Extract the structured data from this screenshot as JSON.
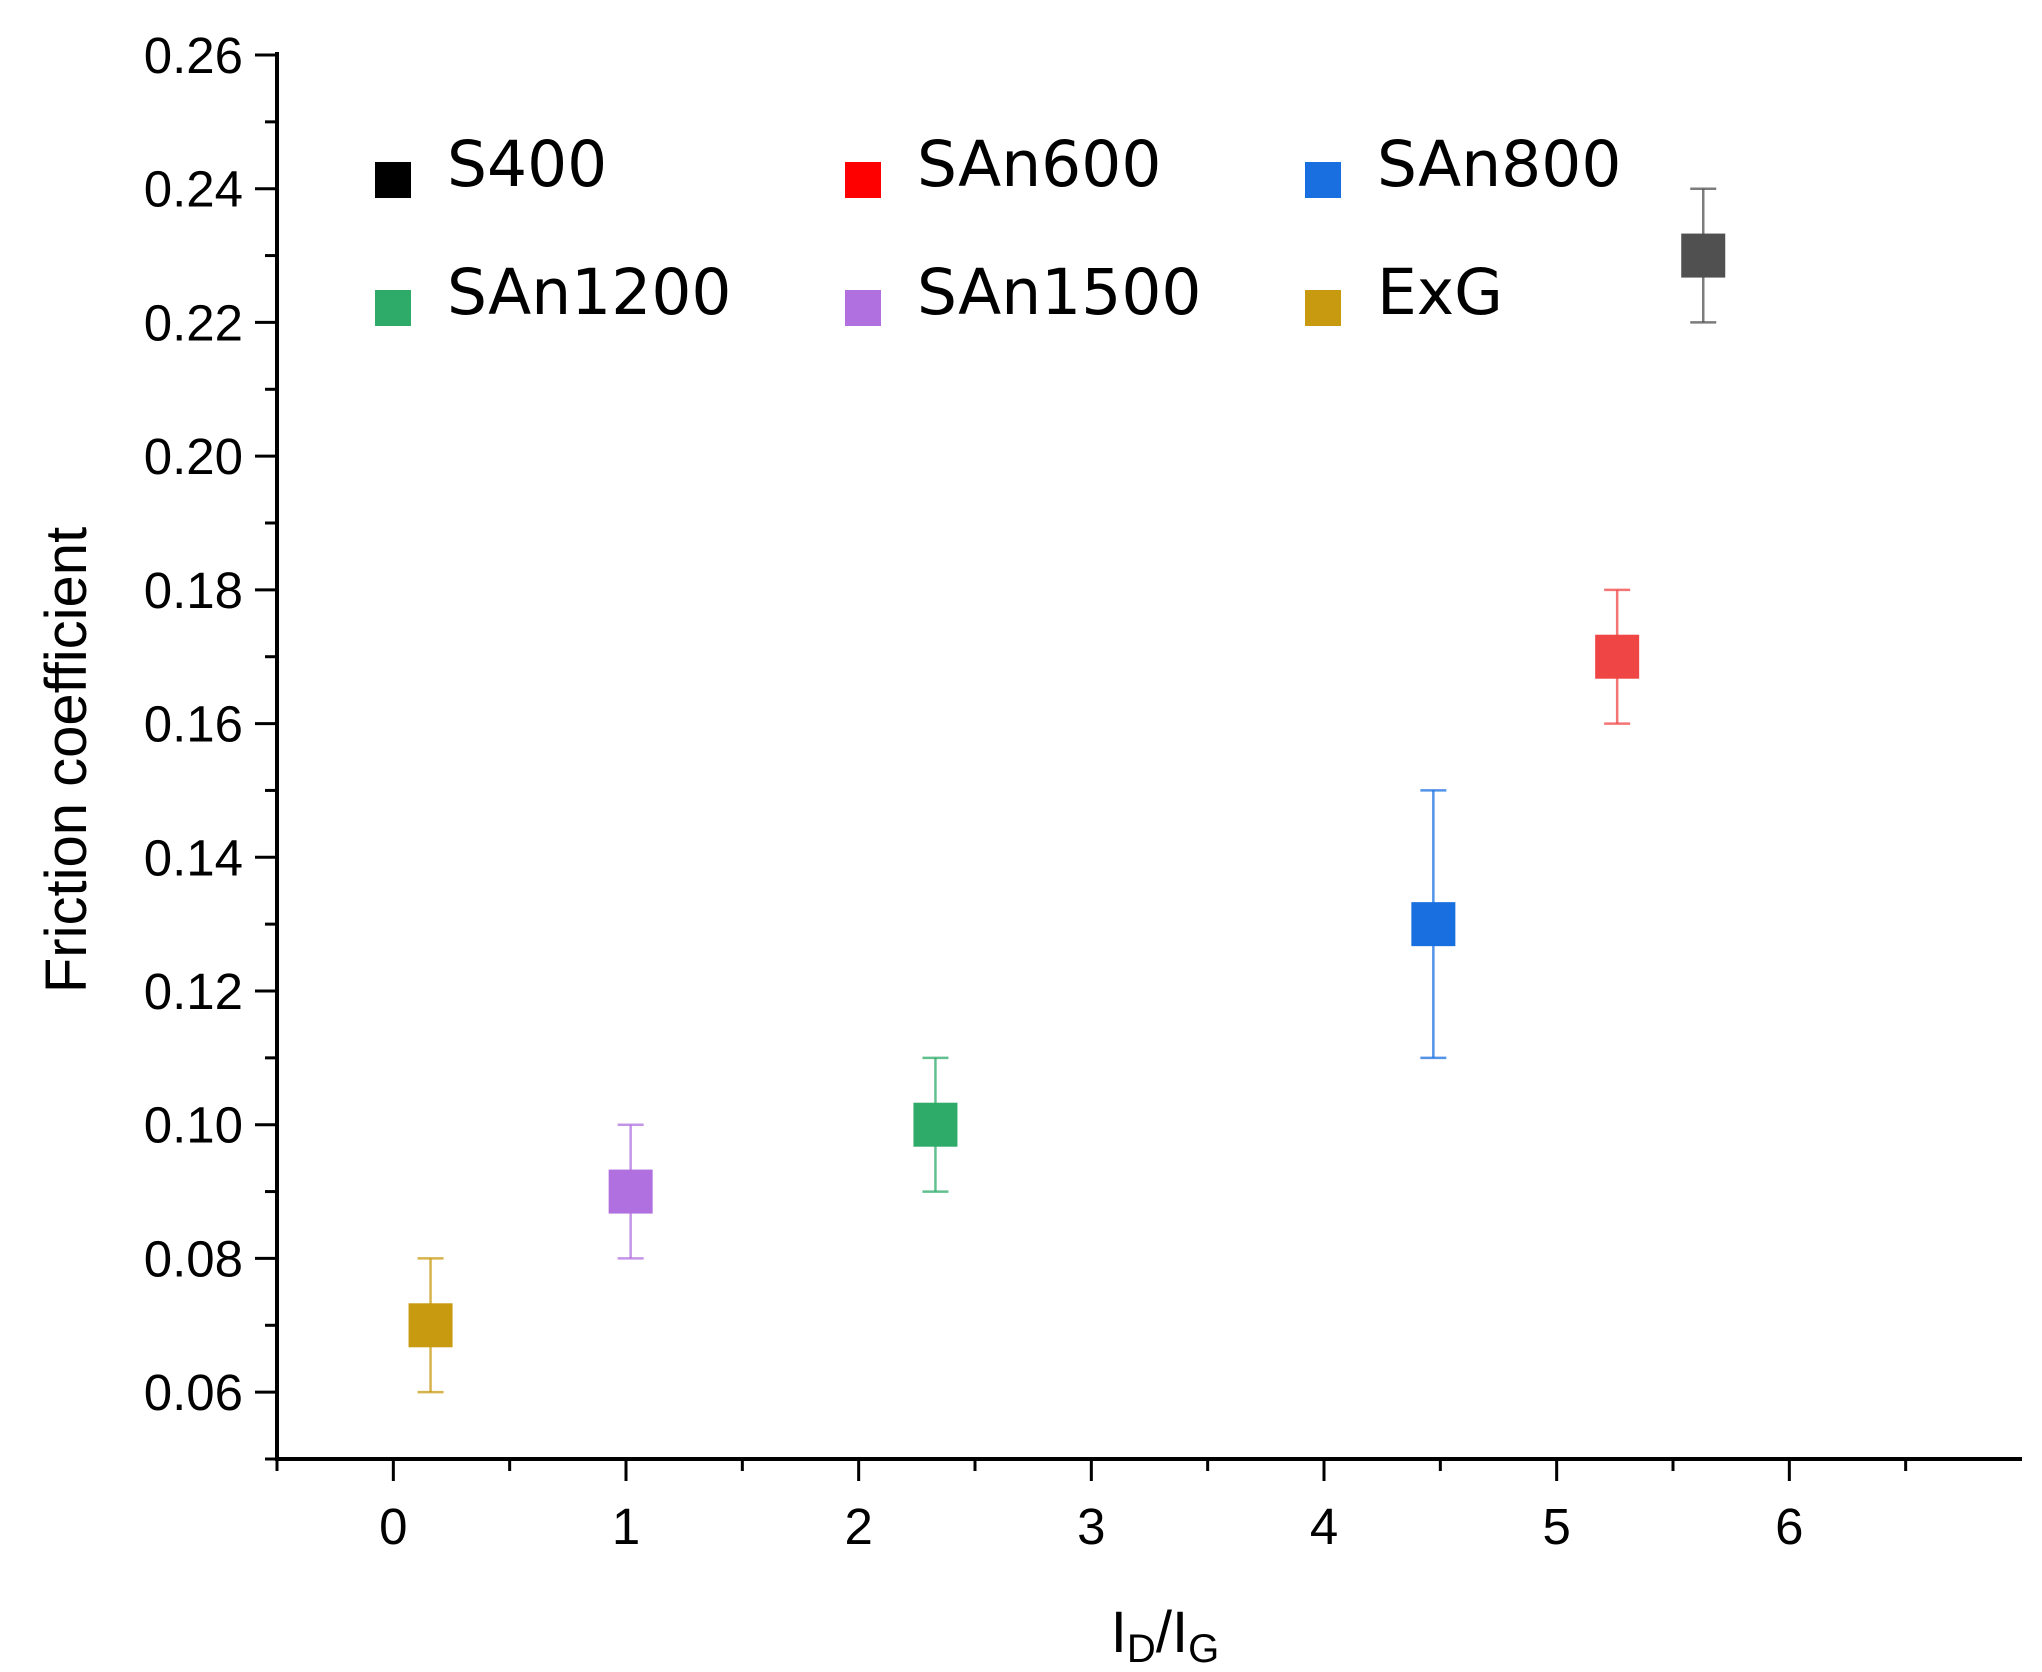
{
  "chart_data": {
    "type": "scatter",
    "title": "",
    "xlabel_main": "I",
    "xlabel_sub1": "D",
    "xlabel_sep": "/",
    "xlabel_sub2": "G",
    "ylabel": "Friction coefficient",
    "xlim": [
      -0.5,
      7.0
    ],
    "ylim": [
      0.05,
      0.26
    ],
    "x_ticks": [
      0,
      1,
      2,
      3,
      4,
      5,
      6
    ],
    "x_tick_labels": [
      "0",
      "1",
      "2",
      "3",
      "4",
      "5",
      "6"
    ],
    "y_ticks": [
      0.06,
      0.08,
      0.1,
      0.12,
      0.14,
      0.16,
      0.18,
      0.2,
      0.22,
      0.24,
      0.26
    ],
    "y_tick_labels": [
      "0.06",
      "0.08",
      "0.10",
      "0.12",
      "0.14",
      "0.16",
      "0.18",
      "0.20",
      "0.22",
      "0.24",
      "0.26"
    ],
    "legend_position": "top-left, inside plot, 3 columns",
    "series": [
      {
        "name": "S400",
        "x": 5.63,
        "y": 0.23,
        "err_low": 0.22,
        "err_high": 0.24,
        "color": "#505050",
        "legend_color": "#000000"
      },
      {
        "name": "SAn600",
        "x": 5.26,
        "y": 0.17,
        "err_low": 0.16,
        "err_high": 0.18,
        "color": "#f04545",
        "legend_color": "#ff0000"
      },
      {
        "name": "SAn800",
        "x": 4.47,
        "y": 0.13,
        "err_low": 0.11,
        "err_high": 0.15,
        "color": "#1a6fe0",
        "legend_color": "#1a6fe0"
      },
      {
        "name": "SAn1200",
        "x": 2.33,
        "y": 0.1,
        "err_low": 0.09,
        "err_high": 0.11,
        "color": "#2eab69",
        "legend_color": "#2eab69"
      },
      {
        "name": "SAn1500",
        "x": 1.02,
        "y": 0.09,
        "err_low": 0.08,
        "err_high": 0.1,
        "color": "#b070e0",
        "legend_color": "#b070e0"
      },
      {
        "name": "ExG",
        "x": 0.16,
        "y": 0.07,
        "err_low": 0.06,
        "err_high": 0.08,
        "color": "#c89a10",
        "legend_color": "#c89a10"
      }
    ],
    "legend_order": [
      "S400",
      "SAn600",
      "SAn800",
      "SAn1200",
      "SAn1500",
      "ExG"
    ]
  }
}
